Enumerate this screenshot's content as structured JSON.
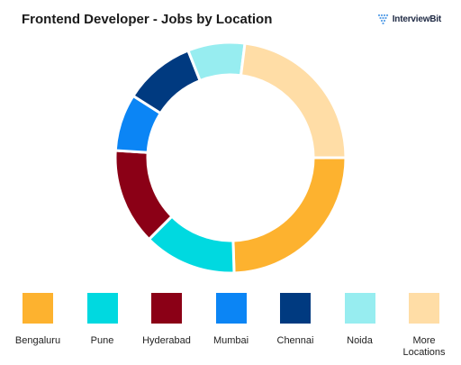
{
  "header": {
    "title": "Frontend Developer - Jobs by Location",
    "brand": "InterviewBit",
    "brand_icon": "interviewbit-logo-icon"
  },
  "chart_data": {
    "type": "pie",
    "variant": "donut",
    "title": "Frontend Developer - Jobs by Location",
    "categories": [
      "Bengaluru",
      "Pune",
      "Hyderabad",
      "Mumbai",
      "Chennai",
      "Noida",
      "More Locations"
    ],
    "values": [
      24.5,
      13,
      13.5,
      8,
      10,
      8,
      23
    ],
    "unit": "%",
    "colors": [
      "#FDB22F",
      "#00D9E0",
      "#8B0016",
      "#0B85F5",
      "#003A80",
      "#97EDF0",
      "#FFDDA6"
    ],
    "legend": "bottom",
    "start": "right, proceeding clockwise"
  }
}
